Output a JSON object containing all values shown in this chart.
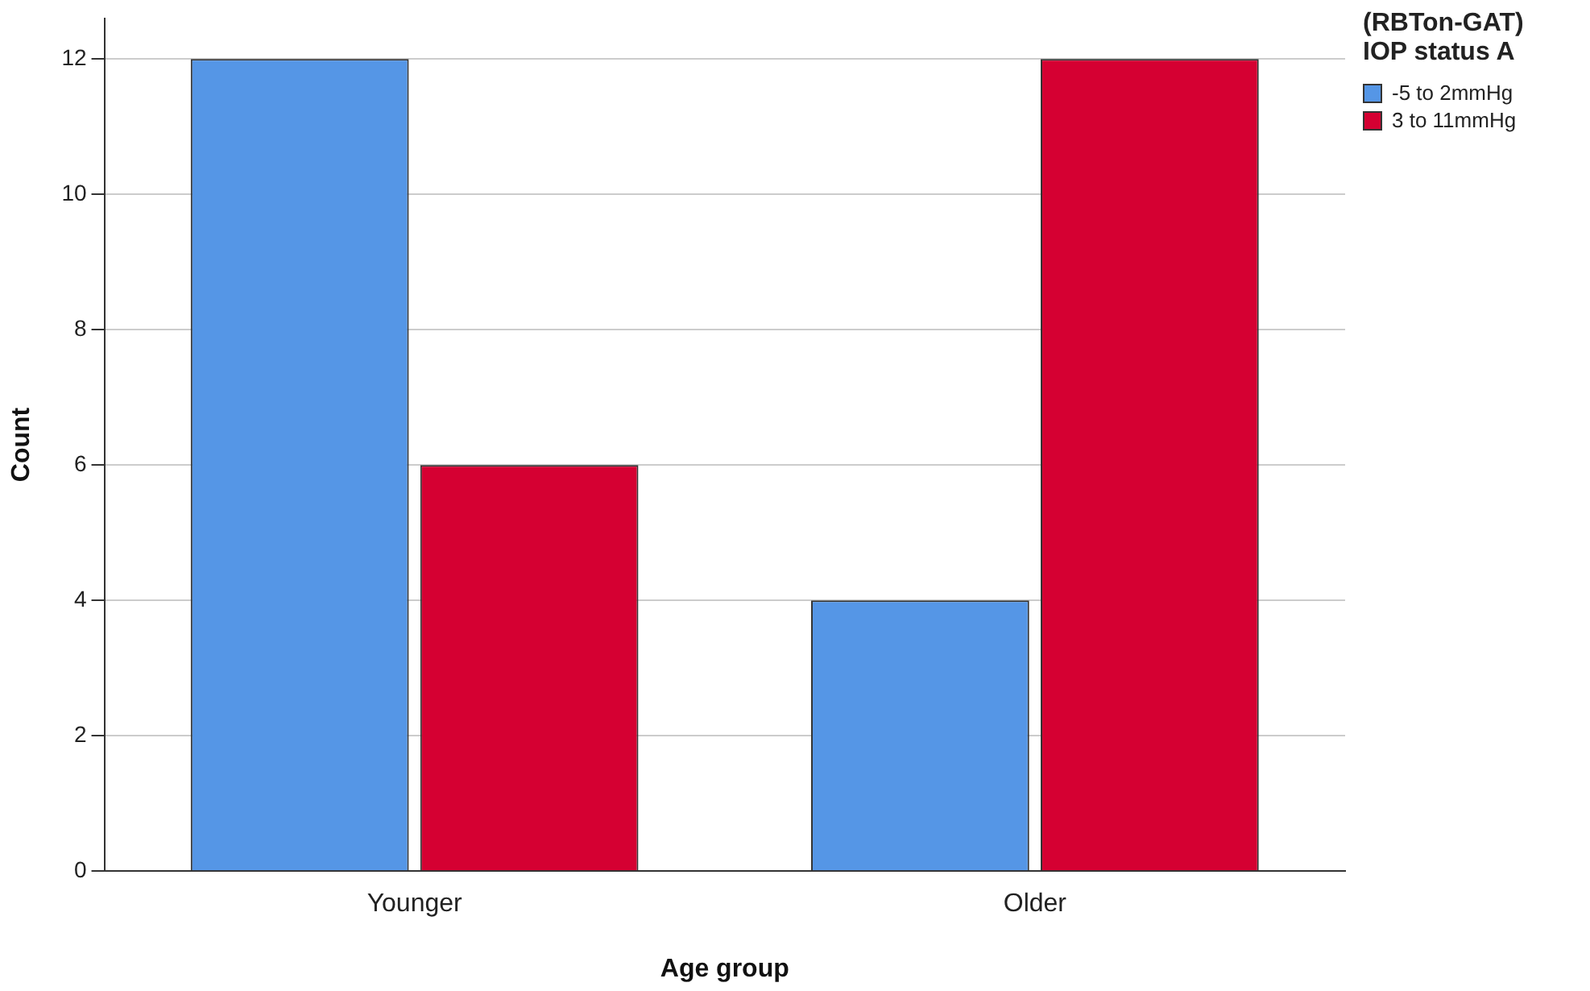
{
  "chart_data": {
    "type": "bar",
    "xlabel": "Age group",
    "ylabel": "Count",
    "legend_title": "(RBTon-GAT) IOP status A",
    "categories": [
      "Younger",
      "Older"
    ],
    "series": [
      {
        "name": "-5 to 2mmHg",
        "color": "#5596e6",
        "values": [
          12,
          4
        ]
      },
      {
        "name": "3 to 11mmHg",
        "color": "#d50032",
        "values": [
          6,
          12
        ]
      }
    ],
    "ylim": [
      0,
      12.6
    ],
    "yticks": [
      0,
      2,
      4,
      6,
      8,
      10,
      12
    ],
    "grid": "y",
    "legend": "top right"
  }
}
